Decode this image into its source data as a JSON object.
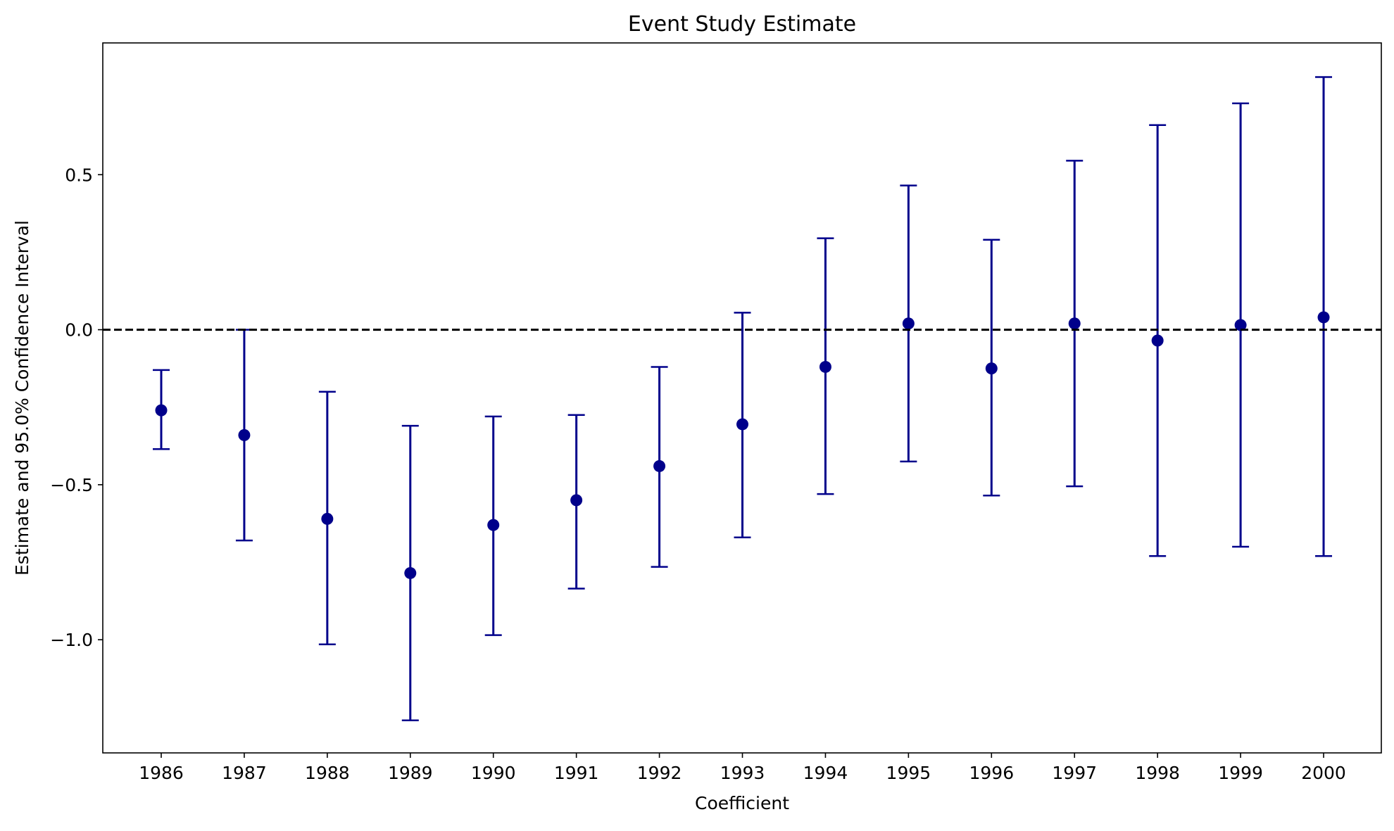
{
  "chart_data": {
    "type": "errorbar",
    "title": "Event Study Estimate",
    "xlabel": "Coefficient",
    "ylabel": "Estimate and 95.0% Confidence Interval",
    "categories": [
      "1986",
      "1987",
      "1988",
      "1989",
      "1990",
      "1991",
      "1992",
      "1993",
      "1994",
      "1995",
      "1996",
      "1997",
      "1998",
      "1999",
      "2000"
    ],
    "estimates": [
      -0.26,
      -0.34,
      -0.61,
      -0.785,
      -0.63,
      -0.55,
      -0.44,
      -0.305,
      -0.12,
      0.02,
      -0.125,
      0.02,
      -0.035,
      0.015,
      0.04
    ],
    "ci_lower": [
      -0.385,
      -0.68,
      -1.015,
      -1.26,
      -0.985,
      -0.835,
      -0.765,
      -0.67,
      -0.53,
      -0.425,
      -0.535,
      -0.505,
      -0.73,
      -0.7,
      -0.73
    ],
    "ci_upper": [
      -0.13,
      0.0,
      -0.2,
      -0.31,
      -0.28,
      -0.275,
      -0.12,
      0.055,
      0.295,
      0.465,
      0.29,
      0.545,
      0.66,
      0.73,
      0.815
    ],
    "yticks": [
      0.5,
      0.0,
      -0.5,
      -1.0
    ],
    "ytick_labels": [
      "0.5",
      "0.0",
      "−0.5",
      "−1.0"
    ],
    "ylim": [
      -1.365,
      0.925
    ],
    "reference_line": {
      "y": 0,
      "style": "dashed",
      "color": "#000000"
    },
    "series_color": "#00008b",
    "grid": false,
    "legend": "none"
  }
}
